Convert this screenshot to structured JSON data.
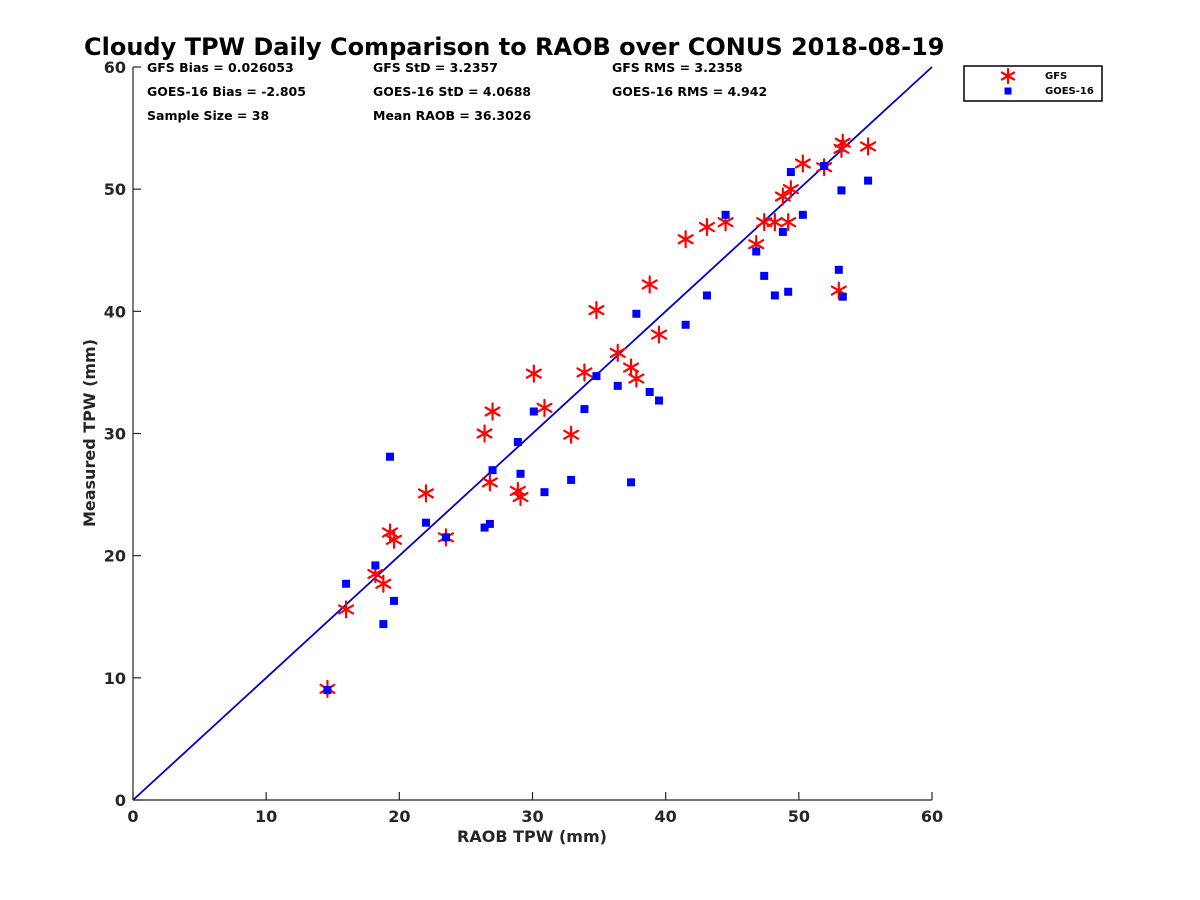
{
  "chart_data": {
    "type": "scatter",
    "title": "Cloudy TPW Daily Comparison to RAOB over CONUS 2018-08-19",
    "xlabel": "RAOB TPW (mm)",
    "ylabel": "Measured TPW (mm)",
    "xlim": [
      0,
      60
    ],
    "ylim": [
      0,
      60
    ],
    "x_ticks": [
      "0",
      "10",
      "20",
      "30",
      "40",
      "50",
      "60"
    ],
    "y_ticks": [
      "0",
      "10",
      "20",
      "30",
      "40",
      "50",
      "60"
    ],
    "grid": false,
    "legend_position": "outside top-right",
    "reference_line": {
      "from": [
        0,
        0
      ],
      "to": [
        60,
        60
      ],
      "color": "#0000cc"
    },
    "stats": [
      "GFS Bias = 0.026053",
      "GFS StD = 3.2357",
      "GFS RMS = 3.2358",
      "GOES-16 Bias = -2.805",
      "GOES-16 StD = 4.0688",
      "GOES-16 RMS = 4.942",
      "Sample Size = 38",
      "Mean RAOB = 36.3026"
    ],
    "series": [
      {
        "name": "GFS",
        "marker": "asterisk",
        "color": "#ff0000",
        "points": [
          [
            14.6,
            9.1
          ],
          [
            16.0,
            15.6
          ],
          [
            18.2,
            18.5
          ],
          [
            18.8,
            17.7
          ],
          [
            19.3,
            21.9
          ],
          [
            19.6,
            21.3
          ],
          [
            22.0,
            25.1
          ],
          [
            23.5,
            21.5
          ],
          [
            26.4,
            30.0
          ],
          [
            26.8,
            26.0
          ],
          [
            27.0,
            31.8
          ],
          [
            28.9,
            25.3
          ],
          [
            29.1,
            24.8
          ],
          [
            30.1,
            34.9
          ],
          [
            30.9,
            32.1
          ],
          [
            32.9,
            29.9
          ],
          [
            33.9,
            35.0
          ],
          [
            34.8,
            40.1
          ],
          [
            36.4,
            36.6
          ],
          [
            37.4,
            35.4
          ],
          [
            37.8,
            34.5
          ],
          [
            38.8,
            42.2
          ],
          [
            39.5,
            38.1
          ],
          [
            41.5,
            45.9
          ],
          [
            43.1,
            46.9
          ],
          [
            44.5,
            47.3
          ],
          [
            46.8,
            45.5
          ],
          [
            47.4,
            47.3
          ],
          [
            48.2,
            47.3
          ],
          [
            48.8,
            49.4
          ],
          [
            49.2,
            47.3
          ],
          [
            49.4,
            50.0
          ],
          [
            50.3,
            52.1
          ],
          [
            51.9,
            51.8
          ],
          [
            53.0,
            41.7
          ],
          [
            53.2,
            53.3
          ],
          [
            53.3,
            53.8
          ],
          [
            55.2,
            53.5
          ]
        ]
      },
      {
        "name": "GOES-16",
        "marker": "square",
        "color": "#0000ff",
        "points": [
          [
            14.6,
            9.0
          ],
          [
            16.0,
            17.7
          ],
          [
            18.2,
            19.2
          ],
          [
            18.8,
            14.4
          ],
          [
            19.3,
            28.1
          ],
          [
            19.6,
            16.3
          ],
          [
            22.0,
            22.7
          ],
          [
            23.5,
            21.5
          ],
          [
            26.4,
            22.3
          ],
          [
            26.8,
            22.6
          ],
          [
            27.0,
            27.0
          ],
          [
            28.9,
            29.3
          ],
          [
            29.1,
            26.7
          ],
          [
            30.1,
            31.8
          ],
          [
            30.9,
            25.2
          ],
          [
            32.9,
            26.2
          ],
          [
            33.9,
            32.0
          ],
          [
            34.8,
            34.7
          ],
          [
            36.4,
            33.9
          ],
          [
            37.4,
            26.0
          ],
          [
            37.8,
            39.8
          ],
          [
            38.8,
            33.4
          ],
          [
            39.5,
            32.7
          ],
          [
            41.5,
            38.9
          ],
          [
            43.1,
            41.3
          ],
          [
            44.5,
            47.9
          ],
          [
            46.8,
            44.9
          ],
          [
            47.4,
            42.9
          ],
          [
            48.2,
            41.3
          ],
          [
            48.8,
            46.5
          ],
          [
            49.2,
            41.6
          ],
          [
            49.4,
            51.4
          ],
          [
            50.3,
            47.9
          ],
          [
            51.9,
            51.9
          ],
          [
            53.0,
            43.4
          ],
          [
            53.2,
            49.9
          ],
          [
            53.3,
            41.2
          ],
          [
            55.2,
            50.7
          ]
        ]
      }
    ]
  }
}
